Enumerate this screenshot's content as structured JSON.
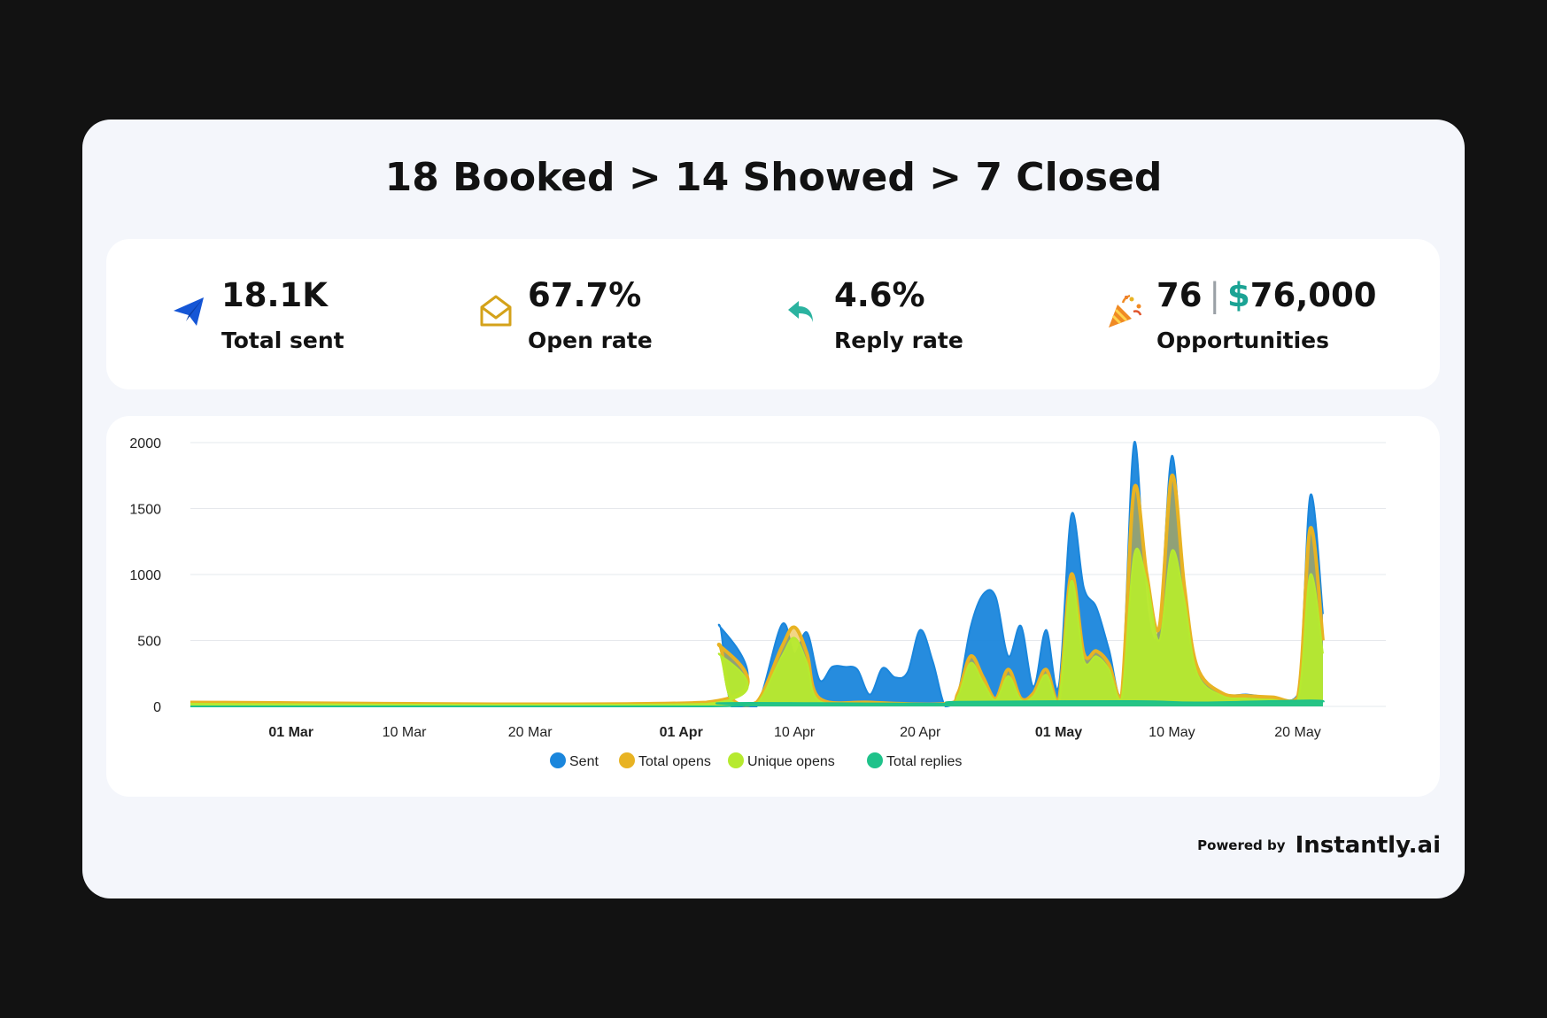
{
  "headline": "18 Booked > 14 Showed > 7 Closed",
  "stats": [
    {
      "icon": "paper-plane-icon",
      "value": "18.1K",
      "label": "Total sent"
    },
    {
      "icon": "envelope-open-icon",
      "value": "67.7%",
      "label": "Open rate"
    },
    {
      "icon": "reply-arrow-icon",
      "value": "4.6%",
      "label": "Reply rate"
    },
    {
      "icon": "party-popper-icon",
      "value_count": "76",
      "value_separator": "|",
      "value_currency": "$",
      "value_amount": "76,000",
      "label": "Opportunities"
    }
  ],
  "colors": {
    "sent": "#1a86dc",
    "total_opens": "#e8b323",
    "unique_opens": "#b6ea2f",
    "total_replies": "#1fc28a",
    "accent_money": "#1aa394"
  },
  "chart_data": {
    "type": "area",
    "x_start": "2024-02-22",
    "x_end": "2024-05-27",
    "ylim": [
      0,
      2000
    ],
    "yticks": [
      0,
      500,
      1000,
      1500,
      2000
    ],
    "xticks": [
      {
        "date": "2024-03-01",
        "label": "01 Mar",
        "bold": true
      },
      {
        "date": "2024-03-10",
        "label": "10 Mar",
        "bold": false
      },
      {
        "date": "2024-03-20",
        "label": "20 Mar",
        "bold": false
      },
      {
        "date": "2024-04-01",
        "label": "01 Apr",
        "bold": true
      },
      {
        "date": "2024-04-10",
        "label": "10 Apr",
        "bold": false
      },
      {
        "date": "2024-04-20",
        "label": "20 Apr",
        "bold": false
      },
      {
        "date": "2024-05-01",
        "label": "01 May",
        "bold": true
      },
      {
        "date": "2024-05-10",
        "label": "10 May",
        "bold": false
      },
      {
        "date": "2024-05-20",
        "label": "20 May",
        "bold": false
      }
    ],
    "grid": true,
    "legend_position": "bottom",
    "series": [
      {
        "name": "Sent",
        "color_key": "sent",
        "points": [
          [
            "2024-02-22",
            0
          ],
          [
            "2024-04-03",
            0
          ],
          [
            "2024-04-04",
            620
          ],
          [
            "2024-04-05",
            0
          ],
          [
            "2024-04-07",
            0
          ],
          [
            "2024-04-09",
            620
          ],
          [
            "2024-04-10",
            400
          ],
          [
            "2024-04-11",
            560
          ],
          [
            "2024-04-12",
            200
          ],
          [
            "2024-04-13",
            300
          ],
          [
            "2024-04-14",
            300
          ],
          [
            "2024-04-15",
            280
          ],
          [
            "2024-04-16",
            90
          ],
          [
            "2024-04-17",
            290
          ],
          [
            "2024-04-18",
            220
          ],
          [
            "2024-04-19",
            260
          ],
          [
            "2024-04-20",
            580
          ],
          [
            "2024-04-21",
            340
          ],
          [
            "2024-04-22",
            0
          ],
          [
            "2024-04-23",
            100
          ],
          [
            "2024-04-24",
            600
          ],
          [
            "2024-04-25",
            850
          ],
          [
            "2024-04-26",
            830
          ],
          [
            "2024-04-27",
            380
          ],
          [
            "2024-04-28",
            610
          ],
          [
            "2024-04-29",
            150
          ],
          [
            "2024-04-30",
            580
          ],
          [
            "2024-05-01",
            150
          ],
          [
            "2024-05-02",
            1450
          ],
          [
            "2024-05-03",
            900
          ],
          [
            "2024-05-04",
            750
          ],
          [
            "2024-05-05",
            430
          ],
          [
            "2024-05-06",
            100
          ],
          [
            "2024-05-07",
            2000
          ],
          [
            "2024-05-08",
            750
          ],
          [
            "2024-05-09",
            600
          ],
          [
            "2024-05-10",
            1900
          ],
          [
            "2024-05-11",
            800
          ],
          [
            "2024-05-12",
            300
          ],
          [
            "2024-05-14",
            100
          ],
          [
            "2024-05-16",
            90
          ],
          [
            "2024-05-18",
            70
          ],
          [
            "2024-05-20",
            90
          ],
          [
            "2024-05-21",
            1600
          ],
          [
            "2024-05-22",
            700
          ]
        ]
      },
      {
        "name": "Total opens",
        "color_key": "total_opens",
        "points": [
          [
            "2024-02-22",
            30
          ],
          [
            "2024-04-03",
            30
          ],
          [
            "2024-04-04",
            470
          ],
          [
            "2024-04-05",
            60
          ],
          [
            "2024-04-07",
            30
          ],
          [
            "2024-04-09",
            450
          ],
          [
            "2024-04-10",
            600
          ],
          [
            "2024-04-11",
            400
          ],
          [
            "2024-04-12",
            60
          ],
          [
            "2024-04-16",
            30
          ],
          [
            "2024-04-22",
            20
          ],
          [
            "2024-04-23",
            100
          ],
          [
            "2024-04-24",
            380
          ],
          [
            "2024-04-25",
            220
          ],
          [
            "2024-04-26",
            60
          ],
          [
            "2024-04-27",
            280
          ],
          [
            "2024-04-28",
            60
          ],
          [
            "2024-04-29",
            100
          ],
          [
            "2024-04-30",
            280
          ],
          [
            "2024-05-01",
            40
          ],
          [
            "2024-05-02",
            1000
          ],
          [
            "2024-05-03",
            400
          ],
          [
            "2024-05-04",
            420
          ],
          [
            "2024-05-05",
            320
          ],
          [
            "2024-05-06",
            80
          ],
          [
            "2024-05-07",
            1650
          ],
          [
            "2024-05-08",
            1000
          ],
          [
            "2024-05-09",
            600
          ],
          [
            "2024-05-10",
            1750
          ],
          [
            "2024-05-11",
            900
          ],
          [
            "2024-05-12",
            300
          ],
          [
            "2024-05-14",
            100
          ],
          [
            "2024-05-16",
            80
          ],
          [
            "2024-05-18",
            70
          ],
          [
            "2024-05-20",
            70
          ],
          [
            "2024-05-21",
            1350
          ],
          [
            "2024-05-22",
            500
          ]
        ]
      },
      {
        "name": "Unique opens",
        "color_key": "unique_opens",
        "points": [
          [
            "2024-02-22",
            20
          ],
          [
            "2024-04-03",
            20
          ],
          [
            "2024-04-04",
            400
          ],
          [
            "2024-04-05",
            40
          ],
          [
            "2024-04-07",
            20
          ],
          [
            "2024-04-09",
            380
          ],
          [
            "2024-04-10",
            520
          ],
          [
            "2024-04-11",
            330
          ],
          [
            "2024-04-12",
            40
          ],
          [
            "2024-04-16",
            20
          ],
          [
            "2024-04-22",
            15
          ],
          [
            "2024-04-23",
            80
          ],
          [
            "2024-04-24",
            330
          ],
          [
            "2024-04-25",
            180
          ],
          [
            "2024-04-26",
            50
          ],
          [
            "2024-04-27",
            230
          ],
          [
            "2024-04-28",
            50
          ],
          [
            "2024-04-29",
            80
          ],
          [
            "2024-04-30",
            240
          ],
          [
            "2024-05-01",
            30
          ],
          [
            "2024-05-02",
            950
          ],
          [
            "2024-05-03",
            350
          ],
          [
            "2024-05-04",
            380
          ],
          [
            "2024-05-05",
            280
          ],
          [
            "2024-05-06",
            60
          ],
          [
            "2024-05-07",
            1150
          ],
          [
            "2024-05-08",
            950
          ],
          [
            "2024-05-09",
            500
          ],
          [
            "2024-05-10",
            1180
          ],
          [
            "2024-05-11",
            800
          ],
          [
            "2024-05-12",
            250
          ],
          [
            "2024-05-14",
            80
          ],
          [
            "2024-05-16",
            60
          ],
          [
            "2024-05-18",
            50
          ],
          [
            "2024-05-20",
            50
          ],
          [
            "2024-05-21",
            1000
          ],
          [
            "2024-05-22",
            400
          ]
        ]
      },
      {
        "name": "Total replies",
        "color_key": "total_replies",
        "points": [
          [
            "2024-02-22",
            0
          ],
          [
            "2024-04-03",
            0
          ],
          [
            "2024-04-04",
            25
          ],
          [
            "2024-04-12",
            25
          ],
          [
            "2024-04-22",
            20
          ],
          [
            "2024-04-23",
            35
          ],
          [
            "2024-05-07",
            40
          ],
          [
            "2024-05-12",
            30
          ],
          [
            "2024-05-21",
            45
          ],
          [
            "2024-05-22",
            30
          ]
        ]
      }
    ]
  },
  "footer": {
    "powered_by": "Powered by",
    "brand": "Instantly.ai"
  }
}
